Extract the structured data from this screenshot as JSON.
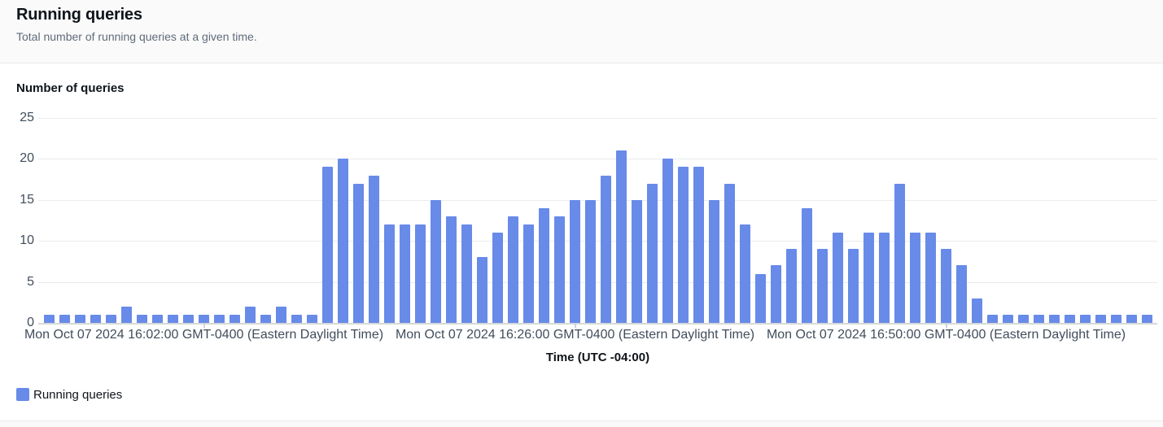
{
  "header": {
    "title": "Running queries",
    "subtitle": "Total number of running queries at a given time."
  },
  "chart_data": {
    "type": "bar",
    "title": "Running queries",
    "ylabel": "Number of queries",
    "xlabel": "Time (UTC -04:00)",
    "ylim": [
      0,
      25
    ],
    "y_ticks": [
      0,
      5,
      10,
      15,
      20,
      25
    ],
    "grid": "horizontal",
    "legend_position": "bottom-left",
    "x_tick_labels": [
      "Mon Oct 07 2024 16:02:00 GMT-0400 (Eastern Daylight Time)",
      "Mon Oct 07 2024 16:26:00 GMT-0400 (Eastern Daylight Time)",
      "Mon Oct 07 2024 16:50:00 GMT-0400 (Eastern Daylight Time)"
    ],
    "x_tick_bar_indices": [
      10,
      34,
      58
    ],
    "series": [
      {
        "name": "Running queries",
        "values": [
          1,
          1,
          1,
          1,
          1,
          2,
          1,
          1,
          1,
          1,
          1,
          1,
          1,
          2,
          1,
          2,
          1,
          1,
          19,
          20,
          17,
          18,
          12,
          12,
          12,
          15,
          13,
          12,
          8,
          11,
          13,
          12,
          14,
          13,
          15,
          15,
          18,
          21,
          15,
          17,
          20,
          19,
          19,
          15,
          17,
          12,
          6,
          7,
          9,
          14,
          9,
          11,
          9,
          11,
          11,
          17,
          11,
          11,
          9,
          7,
          3,
          1,
          1,
          1,
          1,
          1,
          1,
          1,
          1,
          1,
          1,
          1
        ]
      }
    ]
  },
  "legend": {
    "label": "Running queries"
  },
  "colors": {
    "bar": "#688AE8",
    "grid": "#E9EBED",
    "axis_line": "#D5D9D9",
    "tick_text": "#414D5C",
    "heading_text": "#0F141A",
    "subtitle_text": "#5F6B7A",
    "header_background": "#FAFAFA"
  }
}
